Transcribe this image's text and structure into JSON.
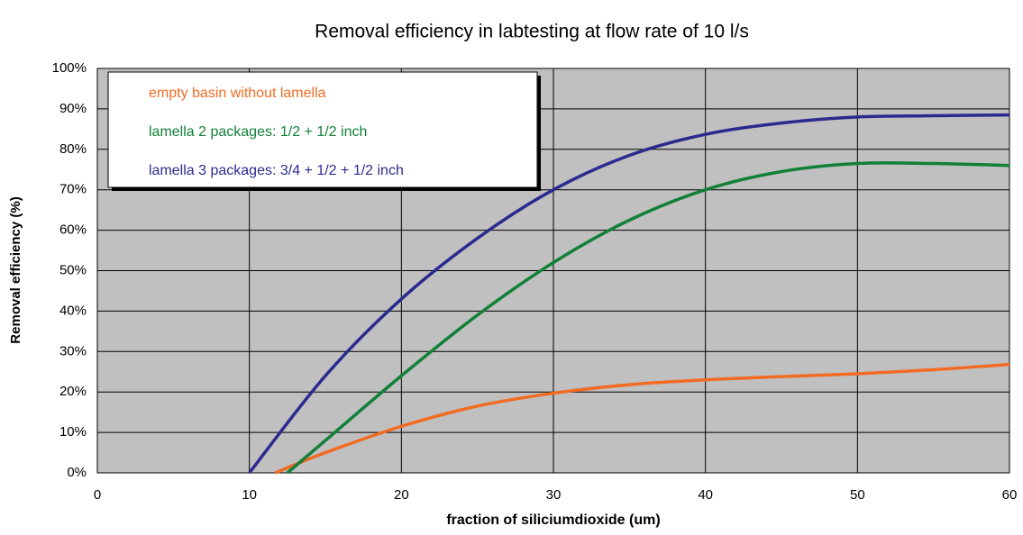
{
  "chart_data": {
    "type": "line",
    "title": "Removal efficiency in labtesting at flow rate of 10 l/s",
    "xlabel": "fraction of siliciumdioxide (um)",
    "ylabel": "Removal efficiency (%)",
    "xlim": [
      0,
      60
    ],
    "xticks": [
      0,
      10,
      20,
      30,
      40,
      50,
      60
    ],
    "ylim": [
      0,
      100
    ],
    "yticks": [
      {
        "value": 0,
        "label": "0%"
      },
      {
        "value": 10,
        "label": "10%"
      },
      {
        "value": 20,
        "label": "20%"
      },
      {
        "value": 30,
        "label": "30%"
      },
      {
        "value": 40,
        "label": "40%"
      },
      {
        "value": 50,
        "label": "50%"
      },
      {
        "value": 60,
        "label": "60%"
      },
      {
        "value": 70,
        "label": "70%"
      },
      {
        "value": 80,
        "label": "80%"
      },
      {
        "value": 90,
        "label": "90%"
      },
      {
        "value": 100,
        "label": "100%"
      }
    ],
    "grid": true,
    "legend": "upper left",
    "series": [
      {
        "name": "empty basin without lamella",
        "color": "#f26b22",
        "x": [
          11.7,
          15,
          20,
          25,
          30,
          35,
          40,
          45,
          50,
          55,
          60
        ],
        "values": [
          0,
          5,
          11.5,
          16.5,
          19.7,
          21.8,
          23,
          23.8,
          24.5,
          25.5,
          26.8
        ]
      },
      {
        "name": "lamella 2 packages: 1/2 + 1/2 inch",
        "color": "#128038",
        "x": [
          12.5,
          15,
          20,
          25,
          30,
          35,
          40,
          45,
          50,
          55,
          60
        ],
        "values": [
          0,
          8,
          24,
          39,
          52,
          62.5,
          70,
          74.5,
          76.5,
          76.5,
          76
        ]
      },
      {
        "name": "lamella 3 packages: 3/4 + 1/2 + 1/2 inch",
        "color": "#2b2b8f",
        "x": [
          10,
          15,
          20,
          25,
          30,
          35,
          40,
          45,
          50,
          55,
          60
        ],
        "values": [
          0,
          24,
          43,
          58,
          70,
          78.5,
          83.7,
          86.5,
          88,
          88.3,
          88.5
        ]
      }
    ]
  }
}
